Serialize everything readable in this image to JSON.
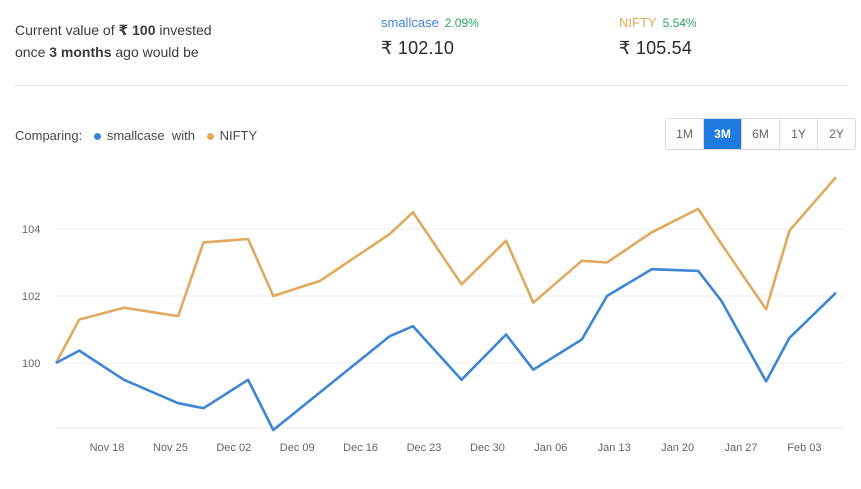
{
  "summary": {
    "line1_prefix": "Current value of ",
    "amount": "₹ 100",
    "line1_suffix": " invested",
    "line2_prefix": "once ",
    "period": "3 months",
    "line2_suffix": " ago would be"
  },
  "stats": {
    "smallcase": {
      "name": "smallcase",
      "pct": "2.09%",
      "value": "₹ 102.10"
    },
    "nifty": {
      "name": "NIFTY",
      "pct": "5.54%",
      "value": "₹ 105.54"
    }
  },
  "comparing": {
    "label": "Comparing:",
    "series_a": "smallcase",
    "with": "with",
    "series_b": "NIFTY"
  },
  "ranges": [
    {
      "label": "1M",
      "active": false
    },
    {
      "label": "3M",
      "active": true
    },
    {
      "label": "6M",
      "active": false
    },
    {
      "label": "1Y",
      "active": false
    },
    {
      "label": "2Y",
      "active": false
    }
  ],
  "colors": {
    "smallcase": "#3f85d4",
    "nifty": "#e0aa5f",
    "accent": "#1f7ae0",
    "positive": "#2fa360"
  },
  "chart_data": {
    "type": "line",
    "x": [
      0,
      1,
      2,
      3,
      4,
      5,
      6,
      7,
      8,
      9,
      10,
      11,
      12,
      13,
      14,
      15,
      16,
      17,
      18,
      19,
      20,
      21,
      22,
      23,
      24,
      25,
      26,
      27,
      28,
      29,
      30,
      31,
      32,
      33,
      34,
      35,
      36,
      37,
      38,
      39,
      40,
      41,
      42,
      43,
      44,
      45,
      46,
      47,
      48,
      49,
      50,
      51,
      52,
      53,
      54,
      55,
      56,
      57,
      58,
      59,
      60,
      61,
      62,
      63,
      64,
      65,
      66,
      67,
      68,
      69,
      70,
      71,
      72,
      73,
      74,
      75,
      76,
      77,
      78
    ],
    "tick_labels": [
      "Nov 18",
      "Nov 25",
      "Dec 02",
      "Dec 09",
      "Dec 16",
      "Dec 23",
      "Dec 30",
      "Jan 06",
      "Jan 13",
      "Jan 20",
      "Jan 27",
      "Feb 03"
    ],
    "series": [
      {
        "name": "smallcase",
        "color": "#3f85d4",
        "points": [
          [
            0,
            100.0
          ],
          [
            2.4,
            100.37
          ],
          [
            7,
            99.5
          ],
          [
            12.6,
            98.8
          ],
          [
            15.2,
            98.65
          ],
          [
            19.8,
            99.5
          ],
          [
            22.4,
            98.0
          ],
          [
            34.4,
            100.8
          ],
          [
            36.8,
            101.1
          ],
          [
            41.8,
            99.5
          ],
          [
            46.4,
            100.85
          ],
          [
            49.2,
            99.8
          ],
          [
            54.2,
            100.7
          ],
          [
            56.8,
            102.0
          ],
          [
            61.4,
            102.8
          ],
          [
            66.2,
            102.75
          ],
          [
            68.6,
            101.85
          ],
          [
            73.2,
            99.45
          ],
          [
            75.6,
            100.75
          ],
          [
            80.4,
            102.1
          ]
        ]
      },
      {
        "name": "NIFTY",
        "color": "#e0aa5f",
        "points": [
          [
            0,
            100.0
          ],
          [
            2.4,
            101.3
          ],
          [
            7,
            101.65
          ],
          [
            12.6,
            101.4
          ],
          [
            15.2,
            103.6
          ],
          [
            19.8,
            103.7
          ],
          [
            22.4,
            102.0
          ],
          [
            27.2,
            102.45
          ],
          [
            34.4,
            103.85
          ],
          [
            36.8,
            104.5
          ],
          [
            41.8,
            102.35
          ],
          [
            46.4,
            103.65
          ],
          [
            49.2,
            101.8
          ],
          [
            54.2,
            103.05
          ],
          [
            56.8,
            103.0
          ],
          [
            61.4,
            103.9
          ],
          [
            66.2,
            104.6
          ],
          [
            68.6,
            103.55
          ],
          [
            73.2,
            101.6
          ],
          [
            75.6,
            103.95
          ],
          [
            80.4,
            105.55
          ]
        ]
      }
    ],
    "y_ticks": [
      100,
      102,
      104
    ],
    "ylim": [
      98,
      106
    ],
    "xlim": [
      0,
      80.4
    ],
    "grid": true,
    "title": "",
    "xlabel": "",
    "ylabel": ""
  }
}
